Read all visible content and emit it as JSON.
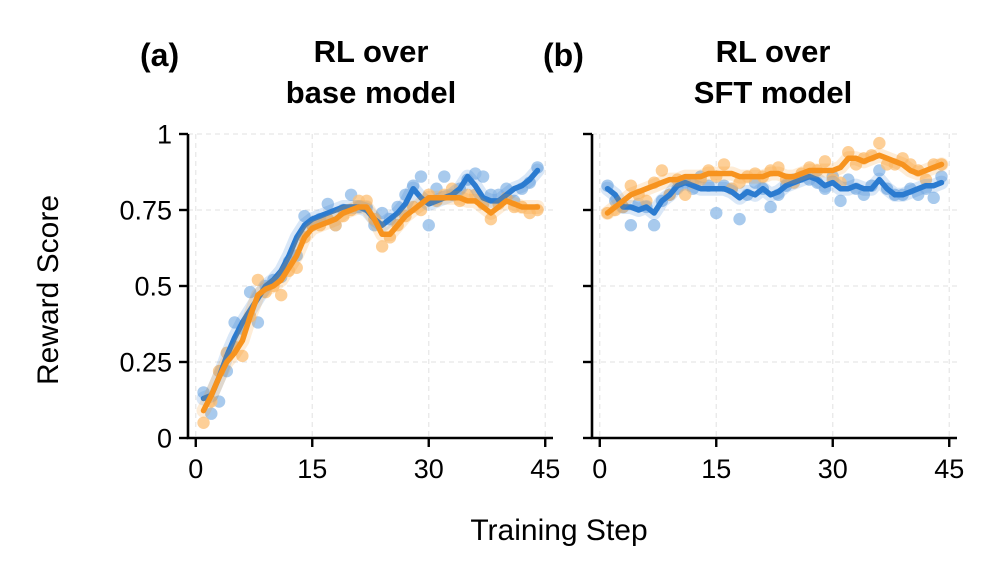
{
  "xlabel": "Training Step",
  "ylabel": "Reward Score",
  "colors": {
    "blue_line": "#2b7bd0",
    "blue_points": "#8fbbe8",
    "orange_line": "#f7931e",
    "orange_points": "#fcc27a",
    "grid": "#e6e6e6"
  },
  "chart_data": [
    {
      "type": "line",
      "panel_label": "(a)",
      "title_lines": [
        "RL over",
        "base model"
      ],
      "xlim": [
        -1,
        46
      ],
      "ylim": [
        0,
        1
      ],
      "xticks": [
        0,
        15,
        30,
        45
      ],
      "yticks": [
        0,
        0.25,
        0.5,
        0.75,
        1
      ],
      "ytick_labels": [
        "0",
        "0.25",
        "0.5",
        "0.75",
        "1"
      ],
      "grid": true,
      "series": [
        {
          "color_key": "blue",
          "points_x": [
            1,
            2,
            3,
            4,
            5,
            6,
            7,
            8,
            9,
            10,
            11,
            12,
            13,
            14,
            15,
            16,
            17,
            18,
            19,
            20,
            21,
            22,
            23,
            24,
            25,
            26,
            27,
            28,
            29,
            30,
            31,
            32,
            33,
            34,
            35,
            36,
            37,
            38,
            39,
            40,
            41,
            42,
            43,
            44
          ],
          "points_y": [
            0.15,
            0.08,
            0.12,
            0.22,
            0.38,
            0.36,
            0.48,
            0.38,
            0.5,
            0.52,
            0.53,
            0.58,
            0.6,
            0.73,
            0.7,
            0.72,
            0.77,
            0.7,
            0.75,
            0.8,
            0.76,
            0.76,
            0.7,
            0.74,
            0.72,
            0.76,
            0.8,
            0.83,
            0.86,
            0.7,
            0.82,
            0.86,
            0.8,
            0.82,
            0.85,
            0.87,
            0.86,
            0.8,
            0.8,
            0.82,
            0.78,
            0.82,
            0.84,
            0.89
          ],
          "line_x": [
            1,
            2,
            3,
            4,
            5,
            6,
            7,
            8,
            9,
            10,
            11,
            12,
            13,
            14,
            15,
            16,
            17,
            18,
            19,
            20,
            21,
            22,
            23,
            24,
            25,
            26,
            27,
            28,
            29,
            30,
            31,
            32,
            33,
            34,
            35,
            36,
            37,
            38,
            39,
            40,
            41,
            42,
            43,
            44
          ],
          "line_y": [
            0.13,
            0.14,
            0.2,
            0.27,
            0.33,
            0.38,
            0.42,
            0.46,
            0.5,
            0.52,
            0.55,
            0.6,
            0.66,
            0.7,
            0.72,
            0.73,
            0.74,
            0.75,
            0.76,
            0.76,
            0.76,
            0.75,
            0.72,
            0.7,
            0.72,
            0.74,
            0.77,
            0.82,
            0.79,
            0.77,
            0.78,
            0.79,
            0.8,
            0.82,
            0.86,
            0.83,
            0.79,
            0.78,
            0.78,
            0.8,
            0.82,
            0.83,
            0.85,
            0.88
          ]
        },
        {
          "color_key": "orange",
          "points_x": [
            1,
            2,
            3,
            4,
            5,
            6,
            7,
            8,
            9,
            10,
            11,
            12,
            13,
            14,
            15,
            16,
            17,
            18,
            19,
            20,
            21,
            22,
            23,
            24,
            25,
            26,
            27,
            28,
            29,
            30,
            31,
            32,
            33,
            34,
            35,
            36,
            37,
            38,
            39,
            40,
            41,
            42,
            43,
            44
          ],
          "points_y": [
            0.05,
            0.12,
            0.22,
            0.28,
            0.3,
            0.27,
            0.4,
            0.52,
            0.48,
            0.5,
            0.47,
            0.55,
            0.56,
            0.66,
            0.7,
            0.7,
            0.72,
            0.7,
            0.73,
            0.75,
            0.78,
            0.78,
            0.72,
            0.63,
            0.66,
            0.7,
            0.73,
            0.76,
            0.75,
            0.8,
            0.78,
            0.8,
            0.82,
            0.78,
            0.8,
            0.8,
            0.77,
            0.72,
            0.77,
            0.79,
            0.76,
            0.76,
            0.74,
            0.75
          ],
          "line_x": [
            1,
            2,
            3,
            4,
            5,
            6,
            7,
            8,
            9,
            10,
            11,
            12,
            13,
            14,
            15,
            16,
            17,
            18,
            19,
            20,
            21,
            22,
            23,
            24,
            25,
            26,
            27,
            28,
            29,
            30,
            31,
            32,
            33,
            34,
            35,
            36,
            37,
            38,
            39,
            40,
            41,
            42,
            43,
            44
          ],
          "line_y": [
            0.09,
            0.14,
            0.2,
            0.25,
            0.28,
            0.32,
            0.4,
            0.47,
            0.49,
            0.5,
            0.52,
            0.56,
            0.6,
            0.66,
            0.69,
            0.7,
            0.71,
            0.72,
            0.74,
            0.75,
            0.76,
            0.76,
            0.72,
            0.67,
            0.67,
            0.7,
            0.73,
            0.75,
            0.77,
            0.79,
            0.79,
            0.79,
            0.79,
            0.79,
            0.78,
            0.78,
            0.76,
            0.74,
            0.76,
            0.78,
            0.77,
            0.76,
            0.76,
            0.76
          ]
        }
      ]
    },
    {
      "type": "line",
      "panel_label": "(b)",
      "title_lines": [
        "RL over",
        "SFT model"
      ],
      "xlim": [
        -1,
        46
      ],
      "ylim": [
        0,
        1
      ],
      "xticks": [
        0,
        15,
        30,
        45
      ],
      "yticks": [
        0,
        0.25,
        0.5,
        0.75,
        1
      ],
      "grid": true,
      "series": [
        {
          "color_key": "blue",
          "points_x": [
            1,
            2,
            3,
            4,
            5,
            6,
            7,
            8,
            9,
            10,
            11,
            12,
            13,
            14,
            15,
            16,
            17,
            18,
            19,
            20,
            21,
            22,
            23,
            24,
            25,
            26,
            27,
            28,
            29,
            30,
            31,
            32,
            33,
            34,
            35,
            36,
            37,
            38,
            39,
            40,
            41,
            42,
            43,
            44
          ],
          "points_y": [
            0.83,
            0.78,
            0.76,
            0.7,
            0.77,
            0.76,
            0.7,
            0.78,
            0.8,
            0.82,
            0.84,
            0.82,
            0.86,
            0.83,
            0.74,
            0.83,
            0.82,
            0.72,
            0.8,
            0.84,
            0.82,
            0.76,
            0.8,
            0.83,
            0.85,
            0.86,
            0.85,
            0.84,
            0.82,
            0.86,
            0.78,
            0.85,
            0.82,
            0.8,
            0.83,
            0.88,
            0.82,
            0.8,
            0.8,
            0.82,
            0.8,
            0.82,
            0.79,
            0.86
          ],
          "line_x": [
            1,
            2,
            3,
            4,
            5,
            6,
            7,
            8,
            9,
            10,
            11,
            12,
            13,
            14,
            15,
            16,
            17,
            18,
            19,
            20,
            21,
            22,
            23,
            24,
            25,
            26,
            27,
            28,
            29,
            30,
            31,
            32,
            33,
            34,
            35,
            36,
            37,
            38,
            39,
            40,
            41,
            42,
            43,
            44
          ],
          "line_y": [
            0.82,
            0.8,
            0.76,
            0.76,
            0.75,
            0.76,
            0.74,
            0.78,
            0.8,
            0.83,
            0.84,
            0.83,
            0.82,
            0.82,
            0.82,
            0.82,
            0.81,
            0.79,
            0.81,
            0.8,
            0.82,
            0.8,
            0.81,
            0.83,
            0.84,
            0.85,
            0.86,
            0.85,
            0.83,
            0.84,
            0.82,
            0.82,
            0.83,
            0.82,
            0.82,
            0.85,
            0.82,
            0.8,
            0.8,
            0.81,
            0.82,
            0.83,
            0.83,
            0.84
          ]
        },
        {
          "color_key": "orange",
          "points_x": [
            1,
            2,
            3,
            4,
            5,
            6,
            7,
            8,
            9,
            10,
            11,
            12,
            13,
            14,
            15,
            16,
            17,
            18,
            19,
            20,
            21,
            22,
            23,
            24,
            25,
            26,
            27,
            28,
            29,
            30,
            31,
            32,
            33,
            34,
            35,
            36,
            37,
            38,
            39,
            40,
            41,
            42,
            43,
            44
          ],
          "points_y": [
            0.74,
            0.75,
            0.76,
            0.83,
            0.8,
            0.78,
            0.84,
            0.88,
            0.8,
            0.85,
            0.8,
            0.84,
            0.85,
            0.88,
            0.86,
            0.9,
            0.82,
            0.84,
            0.86,
            0.87,
            0.86,
            0.88,
            0.89,
            0.85,
            0.84,
            0.87,
            0.89,
            0.88,
            0.91,
            0.85,
            0.84,
            0.94,
            0.9,
            0.92,
            0.93,
            0.97,
            0.9,
            0.9,
            0.92,
            0.9,
            0.88,
            0.85,
            0.9,
            0.9
          ],
          "line_x": [
            1,
            2,
            3,
            4,
            5,
            6,
            7,
            8,
            9,
            10,
            11,
            12,
            13,
            14,
            15,
            16,
            17,
            18,
            19,
            20,
            21,
            22,
            23,
            24,
            25,
            26,
            27,
            28,
            29,
            30,
            31,
            32,
            33,
            34,
            35,
            36,
            37,
            38,
            39,
            40,
            41,
            42,
            43,
            44
          ],
          "line_y": [
            0.74,
            0.76,
            0.78,
            0.8,
            0.81,
            0.82,
            0.83,
            0.84,
            0.85,
            0.85,
            0.86,
            0.86,
            0.86,
            0.87,
            0.87,
            0.87,
            0.87,
            0.86,
            0.86,
            0.86,
            0.86,
            0.87,
            0.87,
            0.86,
            0.86,
            0.87,
            0.88,
            0.88,
            0.88,
            0.88,
            0.89,
            0.92,
            0.92,
            0.91,
            0.92,
            0.93,
            0.92,
            0.91,
            0.9,
            0.88,
            0.87,
            0.88,
            0.89,
            0.9
          ]
        }
      ]
    }
  ]
}
